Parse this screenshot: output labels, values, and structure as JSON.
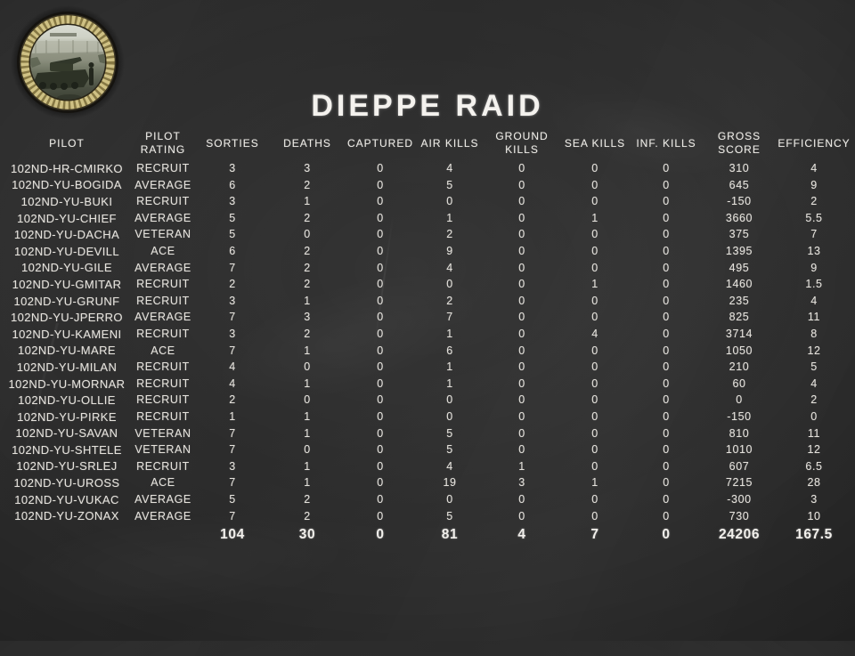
{
  "colors": {
    "board": "#2b2b2b",
    "chalk": "#e4e1db",
    "gold_ring": "#cfc184",
    "gold_ring_dark": "#6d5f2f"
  },
  "emblem": {
    "description": "dieppe-raid-photo-medallion"
  },
  "title": "DIEPPE RAID",
  "table": {
    "columns": [
      "PILOT",
      "PILOT\nRATING",
      "SORTIES",
      "DEATHS",
      "CAPTURED",
      "AIR KILLS",
      "GROUND\nKILLS",
      "SEA KILLS",
      "INF. KILLS",
      "GROSS\nSCORE",
      "EFFICIENCY"
    ],
    "rows": [
      [
        "102ND-HR-CMIRKO",
        "RECRUIT",
        "3",
        "3",
        "0",
        "4",
        "0",
        "0",
        "0",
        "310",
        "4"
      ],
      [
        "102ND-YU-BOGIDA",
        "AVERAGE",
        "6",
        "2",
        "0",
        "5",
        "0",
        "0",
        "0",
        "645",
        "9"
      ],
      [
        "102ND-YU-BUKI",
        "RECRUIT",
        "3",
        "1",
        "0",
        "0",
        "0",
        "0",
        "0",
        "-150",
        "2"
      ],
      [
        "102ND-YU-CHIEF",
        "AVERAGE",
        "5",
        "2",
        "0",
        "1",
        "0",
        "1",
        "0",
        "3660",
        "5.5"
      ],
      [
        "102ND-YU-DACHA",
        "VETERAN",
        "5",
        "0",
        "0",
        "2",
        "0",
        "0",
        "0",
        "375",
        "7"
      ],
      [
        "102ND-YU-DEVILL",
        "ACE",
        "6",
        "2",
        "0",
        "9",
        "0",
        "0",
        "0",
        "1395",
        "13"
      ],
      [
        "102ND-YU-GILE",
        "AVERAGE",
        "7",
        "2",
        "0",
        "4",
        "0",
        "0",
        "0",
        "495",
        "9"
      ],
      [
        "102ND-YU-GMITAR",
        "RECRUIT",
        "2",
        "2",
        "0",
        "0",
        "0",
        "1",
        "0",
        "1460",
        "1.5"
      ],
      [
        "102ND-YU-GRUNF",
        "RECRUIT",
        "3",
        "1",
        "0",
        "2",
        "0",
        "0",
        "0",
        "235",
        "4"
      ],
      [
        "102ND-YU-JPERRO",
        "AVERAGE",
        "7",
        "3",
        "0",
        "7",
        "0",
        "0",
        "0",
        "825",
        "11"
      ],
      [
        "102ND-YU-KAMENI",
        "RECRUIT",
        "3",
        "2",
        "0",
        "1",
        "0",
        "4",
        "0",
        "3714",
        "8"
      ],
      [
        "102ND-YU-MARE",
        "ACE",
        "7",
        "1",
        "0",
        "6",
        "0",
        "0",
        "0",
        "1050",
        "12"
      ],
      [
        "102ND-YU-MILAN",
        "RECRUIT",
        "4",
        "0",
        "0",
        "1",
        "0",
        "0",
        "0",
        "210",
        "5"
      ],
      [
        "102ND-YU-MORNAR",
        "RECRUIT",
        "4",
        "1",
        "0",
        "1",
        "0",
        "0",
        "0",
        "60",
        "4"
      ],
      [
        "102ND-YU-OLLIE",
        "RECRUIT",
        "2",
        "0",
        "0",
        "0",
        "0",
        "0",
        "0",
        "0",
        "2"
      ],
      [
        "102ND-YU-PIRKE",
        "RECRUIT",
        "1",
        "1",
        "0",
        "0",
        "0",
        "0",
        "0",
        "-150",
        "0"
      ],
      [
        "102ND-YU-SAVAN",
        "VETERAN",
        "7",
        "1",
        "0",
        "5",
        "0",
        "0",
        "0",
        "810",
        "11"
      ],
      [
        "102ND-YU-SHTELE",
        "VETERAN",
        "7",
        "0",
        "0",
        "5",
        "0",
        "0",
        "0",
        "1010",
        "12"
      ],
      [
        "102ND-YU-SRLEJ",
        "RECRUIT",
        "3",
        "1",
        "0",
        "4",
        "1",
        "0",
        "0",
        "607",
        "6.5"
      ],
      [
        "102ND-YU-UROSS",
        "ACE",
        "7",
        "1",
        "0",
        "19",
        "3",
        "1",
        "0",
        "7215",
        "28"
      ],
      [
        "102ND-YU-VUKAC",
        "AVERAGE",
        "5",
        "2",
        "0",
        "0",
        "0",
        "0",
        "0",
        "-300",
        "3"
      ],
      [
        "102ND-YU-ZONAX",
        "AVERAGE",
        "7",
        "2",
        "0",
        "5",
        "0",
        "0",
        "0",
        "730",
        "10"
      ]
    ],
    "totals": [
      "",
      "",
      "104",
      "30",
      "0",
      "81",
      "4",
      "7",
      "0",
      "24206",
      "167.5"
    ]
  }
}
